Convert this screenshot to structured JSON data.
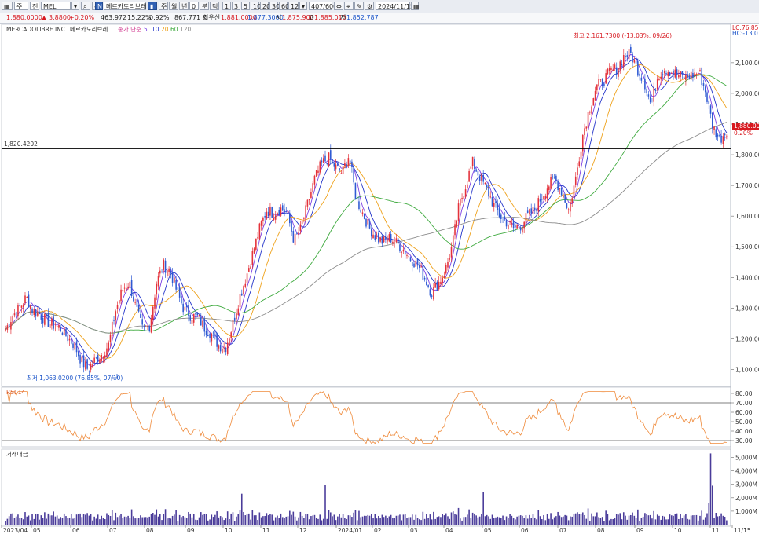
{
  "toolbar": {
    "market": "주",
    "filter": "전",
    "symbol": "MELI",
    "name_badge": "N",
    "name": "메르카도리브레",
    "periods": [
      "주",
      "월",
      "년",
      "0",
      "분",
      "틱"
    ],
    "minutes": [
      "1",
      "3",
      "5",
      "10",
      "20",
      "30",
      "60",
      "120"
    ],
    "count": "407/600",
    "date": "2024/11/15",
    "buy": "매수",
    "sell": "매도"
  },
  "quote": {
    "price": "1,880.0000",
    "arrow": "▲",
    "change": "3.8800",
    "change_pct": "+0.20%",
    "volume": "463,972",
    "vol_pct": "15.22%",
    "turnover_pct": "0.92%",
    "amount": "867,771 K",
    "best": "최우선",
    "bid": "1,881.0000",
    "ask": "1,877.3000",
    "open_label": "시",
    "open": "1,875.900",
    "high_label": "고",
    "high": "1,885.010",
    "low_label": "저",
    "low": "1,852.787"
  },
  "main_panel": {
    "title": "MERCADOLIBRE INC",
    "title_kr": "메르카도리브레",
    "ma_label": "종가 단순",
    "ma_periods": [
      "5",
      "10",
      "20",
      "60",
      "120"
    ],
    "hline_label": "1,820.4202",
    "high_annotation": "최고 2,161.7300 (-13.03%, 09/26)",
    "low_annotation": "최저 1,063.0200 (76.85%, 07/10)",
    "price_tag": "1,880.000",
    "price_tag_pct": "0.20%",
    "lc_label": "LC:76.85",
    "hc_label": "HC:-13.03"
  },
  "rsi_panel": {
    "title": "RSI 14"
  },
  "volume_panel": {
    "title": "거래대금"
  },
  "colors": {
    "up": "#e4323b",
    "down": "#2f5ad3",
    "ma5": "#7b3fe4",
    "ma10": "#2233c9",
    "ma20": "#eea11a",
    "ma60": "#3faa3f",
    "ma120": "#8c8c8c",
    "rsi": "#ef8a3a",
    "volume": "#4a3c9a"
  },
  "chart_data": [
    {
      "type": "candlestick",
      "title": "MERCADOLIBRE INC",
      "y_ticks": [
        "2,100,000",
        "2,000,000",
        "1,900,000",
        "1,800,000",
        "1,700,000",
        "1,600,000",
        "1,500,000",
        "1,400,000",
        "1,300,000",
        "1,200,000",
        "1,100,000"
      ],
      "x_ticks": [
        "2023/04",
        "05",
        "06",
        "07",
        "08",
        "09",
        "10",
        "11",
        "12",
        "2024/01",
        "02",
        "03",
        "04",
        "05",
        "06",
        "07",
        "08",
        "09",
        "10",
        "11",
        "11/15"
      ],
      "ylim": [
        1050,
        2220
      ],
      "horizontal_line": 1820.4202,
      "high": {
        "value": 2161.73,
        "date": "09/26"
      },
      "low": {
        "value": 1063.02,
        "date": "07/10"
      },
      "last": 1880.0,
      "moving_averages": [
        "MA5",
        "MA10",
        "MA20",
        "MA60",
        "MA120"
      ],
      "series": [
        {
          "name": "close",
          "values": [
            1230,
            1275,
            1300,
            1335,
            1290,
            1280,
            1255,
            1245,
            1235,
            1205,
            1180,
            1130,
            1100,
            1130,
            1150,
            1180,
            1290,
            1360,
            1385,
            1300,
            1225,
            1245,
            1385,
            1440,
            1420,
            1350,
            1295,
            1275,
            1270,
            1235,
            1215,
            1180,
            1170,
            1240,
            1330,
            1400,
            1480,
            1560,
            1620,
            1610,
            1625,
            1610,
            1520,
            1560,
            1640,
            1720,
            1770,
            1790,
            1760,
            1740,
            1800,
            1660,
            1610,
            1560,
            1530,
            1515,
            1530,
            1510,
            1490,
            1460,
            1440,
            1400,
            1350,
            1380,
            1420,
            1500,
            1630,
            1700,
            1775,
            1730,
            1690,
            1640,
            1600,
            1580,
            1560,
            1570,
            1600,
            1620,
            1660,
            1700,
            1720,
            1680,
            1620,
            1720,
            1860,
            1950,
            2020,
            2040,
            2070,
            2080,
            2120,
            2130,
            2080,
            2040,
            1960,
            2060,
            2080,
            2070,
            2060,
            2050,
            2060,
            2070,
            2000,
            1890,
            1850,
            1880
          ]
        }
      ]
    },
    {
      "type": "line",
      "title": "RSI 14",
      "y_ticks": [
        "80.00",
        "70.00",
        "60.00",
        "50.00",
        "40.00",
        "30.00"
      ],
      "ylim": [
        25,
        85
      ],
      "reference_lines": [
        70,
        30
      ]
    },
    {
      "type": "bar",
      "title": "거래대금",
      "y_ticks": [
        "5,000M",
        "4,000M",
        "3,000M",
        "2,000M",
        "1,000M"
      ],
      "ylim": [
        0,
        5500
      ]
    }
  ]
}
